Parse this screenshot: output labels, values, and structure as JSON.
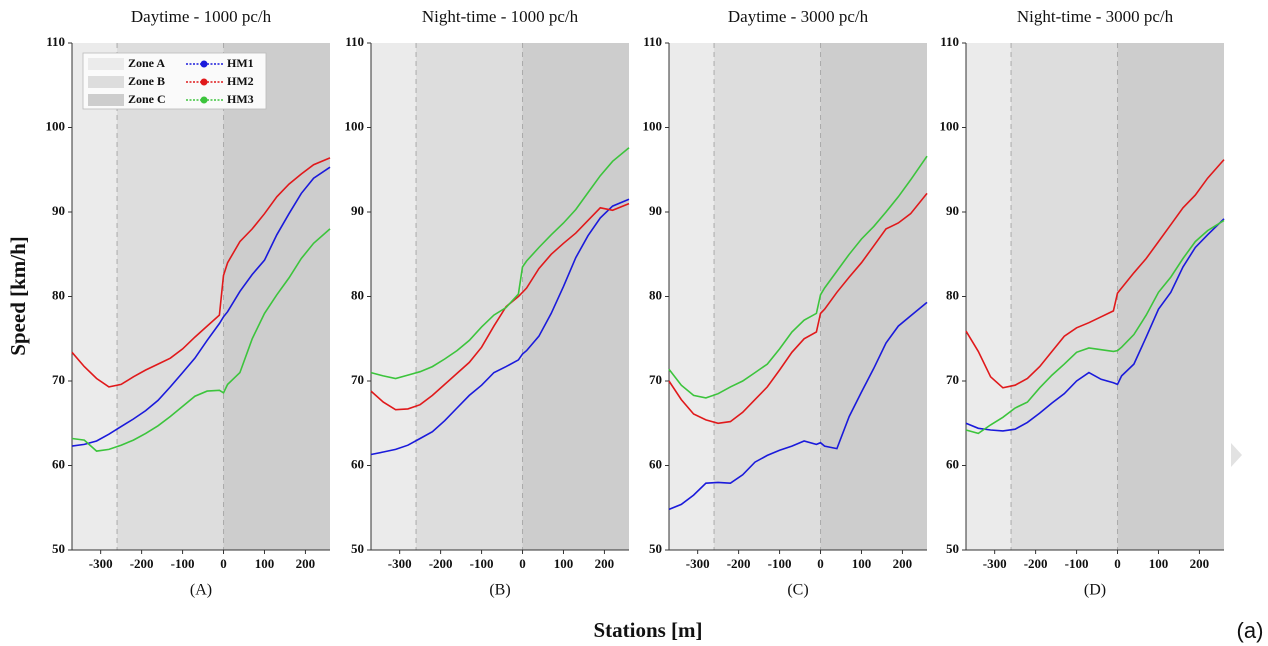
{
  "axis_labels": {
    "x": "Stations [m]",
    "y": "Speed [km/h]"
  },
  "figure_label": "(a)",
  "chart_data": [
    {
      "type": "line",
      "title": "Daytime - 1000 pc/h",
      "caption": "(A)",
      "x": [
        -370,
        -340,
        -310,
        -280,
        -250,
        -220,
        -190,
        -160,
        -130,
        -100,
        -70,
        -40,
        -10,
        0,
        10,
        40,
        70,
        100,
        130,
        160,
        190,
        220,
        260
      ],
      "xlim": [
        -370,
        260
      ],
      "ylim": [
        50,
        110
      ],
      "xticks": [
        -300,
        -200,
        -100,
        0,
        100,
        200
      ],
      "yticks": [
        50,
        60,
        70,
        80,
        90,
        100,
        110
      ],
      "zones": [
        {
          "name": "Zone A",
          "from": -370,
          "to": -260,
          "color": "#ebebeb"
        },
        {
          "name": "Zone B",
          "from": -260,
          "to": 0,
          "color": "#dddddd"
        },
        {
          "name": "Zone C",
          "from": 0,
          "to": 260,
          "color": "#cdcdcd"
        }
      ],
      "legend": "upper left",
      "series": [
        {
          "name": "HM1",
          "color": "#1a1adb",
          "values": [
            62.3,
            62.5,
            62.9,
            63.7,
            64.6,
            65.5,
            66.5,
            67.7,
            69.3,
            71.0,
            72.7,
            74.8,
            76.8,
            77.6,
            78.2,
            80.6,
            82.6,
            84.3,
            87.3,
            89.8,
            92.2,
            94.0,
            95.3
          ]
        },
        {
          "name": "HM2",
          "color": "#e0191b",
          "values": [
            73.4,
            71.7,
            70.3,
            69.3,
            69.6,
            70.5,
            71.3,
            72.0,
            72.7,
            73.8,
            75.2,
            76.5,
            77.8,
            82.5,
            84.0,
            86.5,
            88.0,
            89.8,
            91.8,
            93.3,
            94.5,
            95.6,
            96.4
          ]
        },
        {
          "name": "HM3",
          "color": "#3cc43c",
          "values": [
            63.2,
            63.0,
            61.7,
            61.9,
            62.4,
            63.0,
            63.8,
            64.7,
            65.8,
            67.0,
            68.2,
            68.8,
            68.9,
            68.6,
            69.6,
            71.0,
            75.0,
            78.0,
            80.2,
            82.2,
            84.5,
            86.3,
            88.0
          ]
        }
      ]
    },
    {
      "type": "line",
      "title": "Night-time - 1000 pc/h",
      "caption": "(B)",
      "x": [
        -370,
        -340,
        -310,
        -280,
        -250,
        -220,
        -190,
        -160,
        -130,
        -100,
        -70,
        -40,
        -10,
        0,
        10,
        40,
        70,
        100,
        130,
        160,
        190,
        220,
        260
      ],
      "xlim": [
        -370,
        260
      ],
      "ylim": [
        50,
        110
      ],
      "xticks": [
        -300,
        -200,
        -100,
        0,
        100,
        200
      ],
      "yticks": [
        50,
        60,
        70,
        80,
        90,
        100,
        110
      ],
      "zones": [
        {
          "from": -370,
          "to": -260,
          "color": "#ebebeb"
        },
        {
          "from": -260,
          "to": 0,
          "color": "#dddddd"
        },
        {
          "from": 0,
          "to": 260,
          "color": "#cdcdcd"
        }
      ],
      "series": [
        {
          "color": "#1a1adb",
          "values": [
            61.3,
            61.6,
            61.9,
            62.4,
            63.2,
            64.0,
            65.3,
            66.8,
            68.3,
            69.5,
            71.0,
            71.7,
            72.5,
            73.2,
            73.6,
            75.3,
            78.0,
            81.2,
            84.6,
            87.2,
            89.3,
            90.7,
            91.5
          ]
        },
        {
          "color": "#e0191b",
          "values": [
            68.8,
            67.5,
            66.6,
            66.7,
            67.2,
            68.3,
            69.6,
            70.9,
            72.2,
            74.0,
            76.5,
            78.8,
            80.0,
            80.5,
            81.0,
            83.3,
            85.0,
            86.3,
            87.5,
            89.0,
            90.5,
            90.2,
            91.0
          ]
        },
        {
          "color": "#3cc43c",
          "values": [
            71.0,
            70.6,
            70.3,
            70.7,
            71.1,
            71.7,
            72.6,
            73.6,
            74.8,
            76.4,
            77.8,
            78.7,
            80.3,
            83.5,
            84.2,
            85.8,
            87.3,
            88.7,
            90.3,
            92.3,
            94.3,
            96.0,
            97.6
          ]
        }
      ]
    },
    {
      "type": "line",
      "title": "Daytime - 3000 pc/h",
      "caption": "(C)",
      "x": [
        -370,
        -340,
        -310,
        -280,
        -250,
        -220,
        -190,
        -160,
        -130,
        -100,
        -70,
        -40,
        -10,
        0,
        10,
        40,
        70,
        100,
        130,
        160,
        190,
        220,
        260
      ],
      "xlim": [
        -370,
        260
      ],
      "ylim": [
        50,
        110
      ],
      "xticks": [
        -300,
        -200,
        -100,
        0,
        100,
        200
      ],
      "yticks": [
        50,
        60,
        70,
        80,
        90,
        100,
        110
      ],
      "zones": [
        {
          "from": -370,
          "to": -260,
          "color": "#ebebeb"
        },
        {
          "from": -260,
          "to": 0,
          "color": "#dddddd"
        },
        {
          "from": 0,
          "to": 260,
          "color": "#cdcdcd"
        }
      ],
      "series": [
        {
          "color": "#1a1adb",
          "values": [
            54.8,
            55.4,
            56.5,
            57.9,
            58.0,
            57.9,
            58.9,
            60.4,
            61.2,
            61.8,
            62.3,
            62.9,
            62.5,
            62.7,
            62.3,
            62.0,
            65.8,
            68.7,
            71.5,
            74.5,
            76.5,
            77.7,
            79.3
          ]
        },
        {
          "color": "#e0191b",
          "values": [
            70.0,
            67.8,
            66.1,
            65.4,
            65.0,
            65.2,
            66.3,
            67.8,
            69.3,
            71.3,
            73.4,
            75.0,
            75.8,
            78.0,
            78.5,
            80.5,
            82.3,
            84.0,
            86.0,
            88.0,
            88.7,
            89.8,
            92.2
          ]
        },
        {
          "color": "#3cc43c",
          "values": [
            71.4,
            69.5,
            68.3,
            68.0,
            68.5,
            69.3,
            70.0,
            71.0,
            72.0,
            73.8,
            75.8,
            77.2,
            78.0,
            80.2,
            81.0,
            83.0,
            85.0,
            86.8,
            88.3,
            90.0,
            91.8,
            93.8,
            96.6
          ]
        }
      ]
    },
    {
      "type": "line",
      "title": "Night-time - 3000 pc/h",
      "caption": "(D)",
      "x": [
        -370,
        -340,
        -310,
        -280,
        -250,
        -220,
        -190,
        -160,
        -130,
        -100,
        -70,
        -40,
        -10,
        0,
        10,
        40,
        70,
        100,
        130,
        160,
        190,
        220,
        260
      ],
      "xlim": [
        -370,
        260
      ],
      "ylim": [
        50,
        110
      ],
      "xticks": [
        -300,
        -200,
        -100,
        0,
        100,
        200
      ],
      "yticks": [
        50,
        60,
        70,
        80,
        90,
        100,
        110
      ],
      "zones": [
        {
          "from": -370,
          "to": -260,
          "color": "#ebebeb"
        },
        {
          "from": -260,
          "to": 0,
          "color": "#dddddd"
        },
        {
          "from": 0,
          "to": 260,
          "color": "#cdcdcd"
        }
      ],
      "series": [
        {
          "color": "#1a1adb",
          "values": [
            65.0,
            64.4,
            64.2,
            64.1,
            64.3,
            65.1,
            66.2,
            67.4,
            68.5,
            70.0,
            71.0,
            70.2,
            69.8,
            69.6,
            70.6,
            72.0,
            75.2,
            78.5,
            80.5,
            83.5,
            85.8,
            87.3,
            89.2
          ]
        },
        {
          "color": "#e0191b",
          "values": [
            75.9,
            73.5,
            70.5,
            69.2,
            69.5,
            70.3,
            71.7,
            73.5,
            75.3,
            76.3,
            76.9,
            77.6,
            78.3,
            80.4,
            81.0,
            82.8,
            84.5,
            86.5,
            88.5,
            90.5,
            92.0,
            94.0,
            96.2
          ]
        },
        {
          "color": "#3cc43c",
          "values": [
            64.2,
            63.8,
            64.8,
            65.7,
            66.8,
            67.5,
            69.2,
            70.7,
            72.0,
            73.4,
            73.9,
            73.7,
            73.5,
            73.6,
            74.0,
            75.5,
            77.8,
            80.5,
            82.3,
            84.5,
            86.5,
            87.8,
            89.0
          ]
        }
      ]
    }
  ]
}
